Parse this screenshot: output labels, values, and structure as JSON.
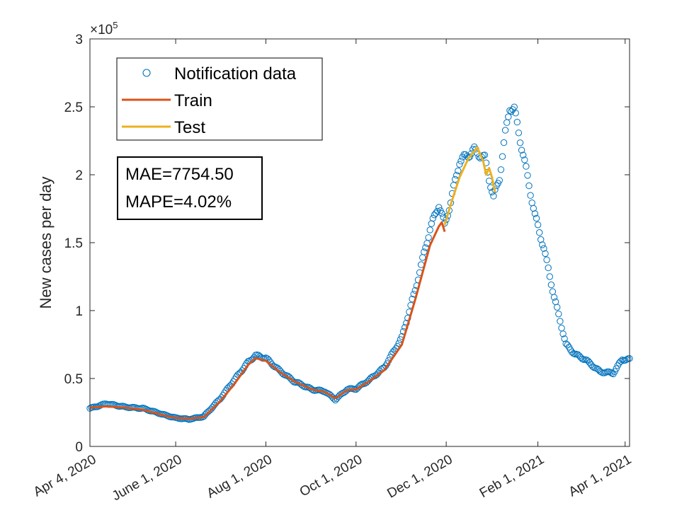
{
  "chart_data": {
    "type": "line",
    "title": "",
    "xlabel": "",
    "ylabel": "New cases per day",
    "y_multiplier": "×10",
    "y_multiplier_exp": "5",
    "xlim": [
      "2020-04-04",
      "2021-04-04"
    ],
    "ylim": [
      0,
      300000
    ],
    "y_ticks": [
      0,
      50000,
      100000,
      150000,
      200000,
      250000,
      300000
    ],
    "y_tick_labels": [
      "0",
      "0.5",
      "1",
      "1.5",
      "2",
      "2.5",
      "3"
    ],
    "x_ticks": [
      "2020-04-04",
      "2020-06-01",
      "2020-08-01",
      "2020-10-01",
      "2020-12-01",
      "2021-02-01",
      "2021-04-01"
    ],
    "x_tick_labels": [
      "Apr 4, 2020",
      "June 1, 2020",
      "Aug 1, 2020",
      "Oct 1, 2020",
      "Dec 1, 2020",
      "Feb 1, 2021",
      "Apr 1, 2021"
    ],
    "grid": false,
    "legend_position": "top-left",
    "series": [
      {
        "name": "Notification data",
        "style": "markers",
        "color": "#0072BD",
        "points": [
          [
            "2020-04-04",
            28000
          ],
          [
            "2020-04-15",
            31500
          ],
          [
            "2020-04-28",
            29000
          ],
          [
            "2020-05-10",
            28000
          ],
          [
            "2020-05-25",
            23000
          ],
          [
            "2020-06-01",
            21000
          ],
          [
            "2020-06-10",
            20000
          ],
          [
            "2020-06-20",
            22000
          ],
          [
            "2020-07-01",
            35000
          ],
          [
            "2020-07-10",
            48000
          ],
          [
            "2020-07-20",
            62000
          ],
          [
            "2020-07-25",
            67000
          ],
          [
            "2020-08-01",
            65000
          ],
          [
            "2020-08-10",
            56000
          ],
          [
            "2020-08-20",
            48000
          ],
          [
            "2020-09-01",
            42000
          ],
          [
            "2020-09-10",
            40500
          ],
          [
            "2020-09-17",
            34500
          ],
          [
            "2020-09-25",
            42000
          ],
          [
            "2020-10-01",
            42500
          ],
          [
            "2020-10-10",
            49000
          ],
          [
            "2020-10-20",
            58000
          ],
          [
            "2020-11-01",
            80000
          ],
          [
            "2020-11-10",
            115000
          ],
          [
            "2020-11-20",
            160000
          ],
          [
            "2020-11-26",
            178000
          ],
          [
            "2020-11-30",
            163000
          ],
          [
            "2020-12-04",
            180000
          ],
          [
            "2020-12-10",
            210000
          ],
          [
            "2020-12-20",
            218000
          ],
          [
            "2020-12-27",
            212000
          ],
          [
            "2021-01-02",
            183000
          ],
          [
            "2021-01-06",
            198000
          ],
          [
            "2021-01-10",
            230000
          ],
          [
            "2021-01-13",
            250000
          ],
          [
            "2021-01-16",
            248000
          ],
          [
            "2021-01-22",
            215000
          ],
          [
            "2021-01-30",
            170000
          ],
          [
            "2021-02-05",
            146000
          ],
          [
            "2021-02-12",
            110000
          ],
          [
            "2021-02-20",
            75000
          ],
          [
            "2021-02-26",
            68000
          ],
          [
            "2021-03-05",
            64000
          ],
          [
            "2021-03-15",
            55000
          ],
          [
            "2021-03-24",
            54000
          ],
          [
            "2021-03-30",
            64000
          ],
          [
            "2021-04-04",
            64000
          ]
        ]
      },
      {
        "name": "Train",
        "style": "line",
        "color": "#D95319",
        "points": [
          [
            "2020-04-04",
            28500
          ],
          [
            "2020-04-15",
            29500
          ],
          [
            "2020-04-28",
            28500
          ],
          [
            "2020-05-10",
            27000
          ],
          [
            "2020-05-25",
            22500
          ],
          [
            "2020-06-01",
            21000
          ],
          [
            "2020-06-10",
            20500
          ],
          [
            "2020-06-20",
            21500
          ],
          [
            "2020-07-01",
            33000
          ],
          [
            "2020-07-10",
            45000
          ],
          [
            "2020-07-20",
            60000
          ],
          [
            "2020-07-25",
            65000
          ],
          [
            "2020-08-01",
            63000
          ],
          [
            "2020-08-10",
            55000
          ],
          [
            "2020-08-20",
            48000
          ],
          [
            "2020-09-01",
            42000
          ],
          [
            "2020-09-10",
            40000
          ],
          [
            "2020-09-17",
            35500
          ],
          [
            "2020-09-25",
            41500
          ],
          [
            "2020-10-01",
            42000
          ],
          [
            "2020-10-10",
            48000
          ],
          [
            "2020-10-20",
            56000
          ],
          [
            "2020-11-01",
            75000
          ],
          [
            "2020-11-10",
            108000
          ],
          [
            "2020-11-20",
            148000
          ],
          [
            "2020-11-26",
            162000
          ],
          [
            "2020-11-28",
            165000
          ],
          [
            "2020-11-30",
            158000
          ]
        ]
      },
      {
        "name": "Test",
        "style": "line",
        "color": "#EDB120",
        "points": [
          [
            "2020-11-30",
            163000
          ],
          [
            "2020-12-04",
            178000
          ],
          [
            "2020-12-10",
            198000
          ],
          [
            "2020-12-16",
            212000
          ],
          [
            "2020-12-22",
            220000
          ],
          [
            "2020-12-26",
            210000
          ],
          [
            "2020-12-28",
            200000
          ],
          [
            "2020-12-30",
            205000
          ],
          [
            "2021-01-01",
            198000
          ],
          [
            "2021-01-03",
            187000
          ]
        ]
      }
    ],
    "annotation": {
      "lines": [
        "MAE=7754.50",
        "MAPE=4.02%"
      ]
    }
  }
}
